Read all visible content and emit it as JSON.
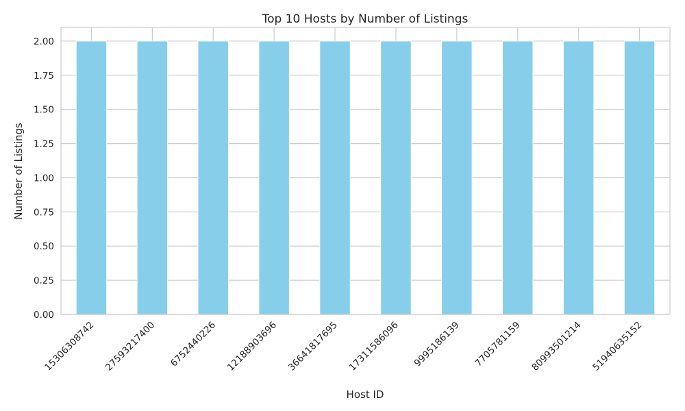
{
  "chart_data": {
    "type": "bar",
    "title": "Top 10 Hosts by Number of Listings",
    "xlabel": "Host ID",
    "ylabel": "Number of Listings",
    "categories": [
      "15306308742",
      "27593217400",
      "6752440226",
      "12188903696",
      "36641817695",
      "17311586096",
      "9995186139",
      "7705781159",
      "80993501214",
      "51940635152"
    ],
    "values": [
      2,
      2,
      2,
      2,
      2,
      2,
      2,
      2,
      2,
      2
    ],
    "ylim": [
      0,
      2.1
    ],
    "yticks": [
      "0.00",
      "0.25",
      "0.50",
      "0.75",
      "1.00",
      "1.25",
      "1.50",
      "1.75",
      "2.00"
    ],
    "grid": true,
    "bar_color": "#87ceeb",
    "grid_color": "#cccccc"
  }
}
